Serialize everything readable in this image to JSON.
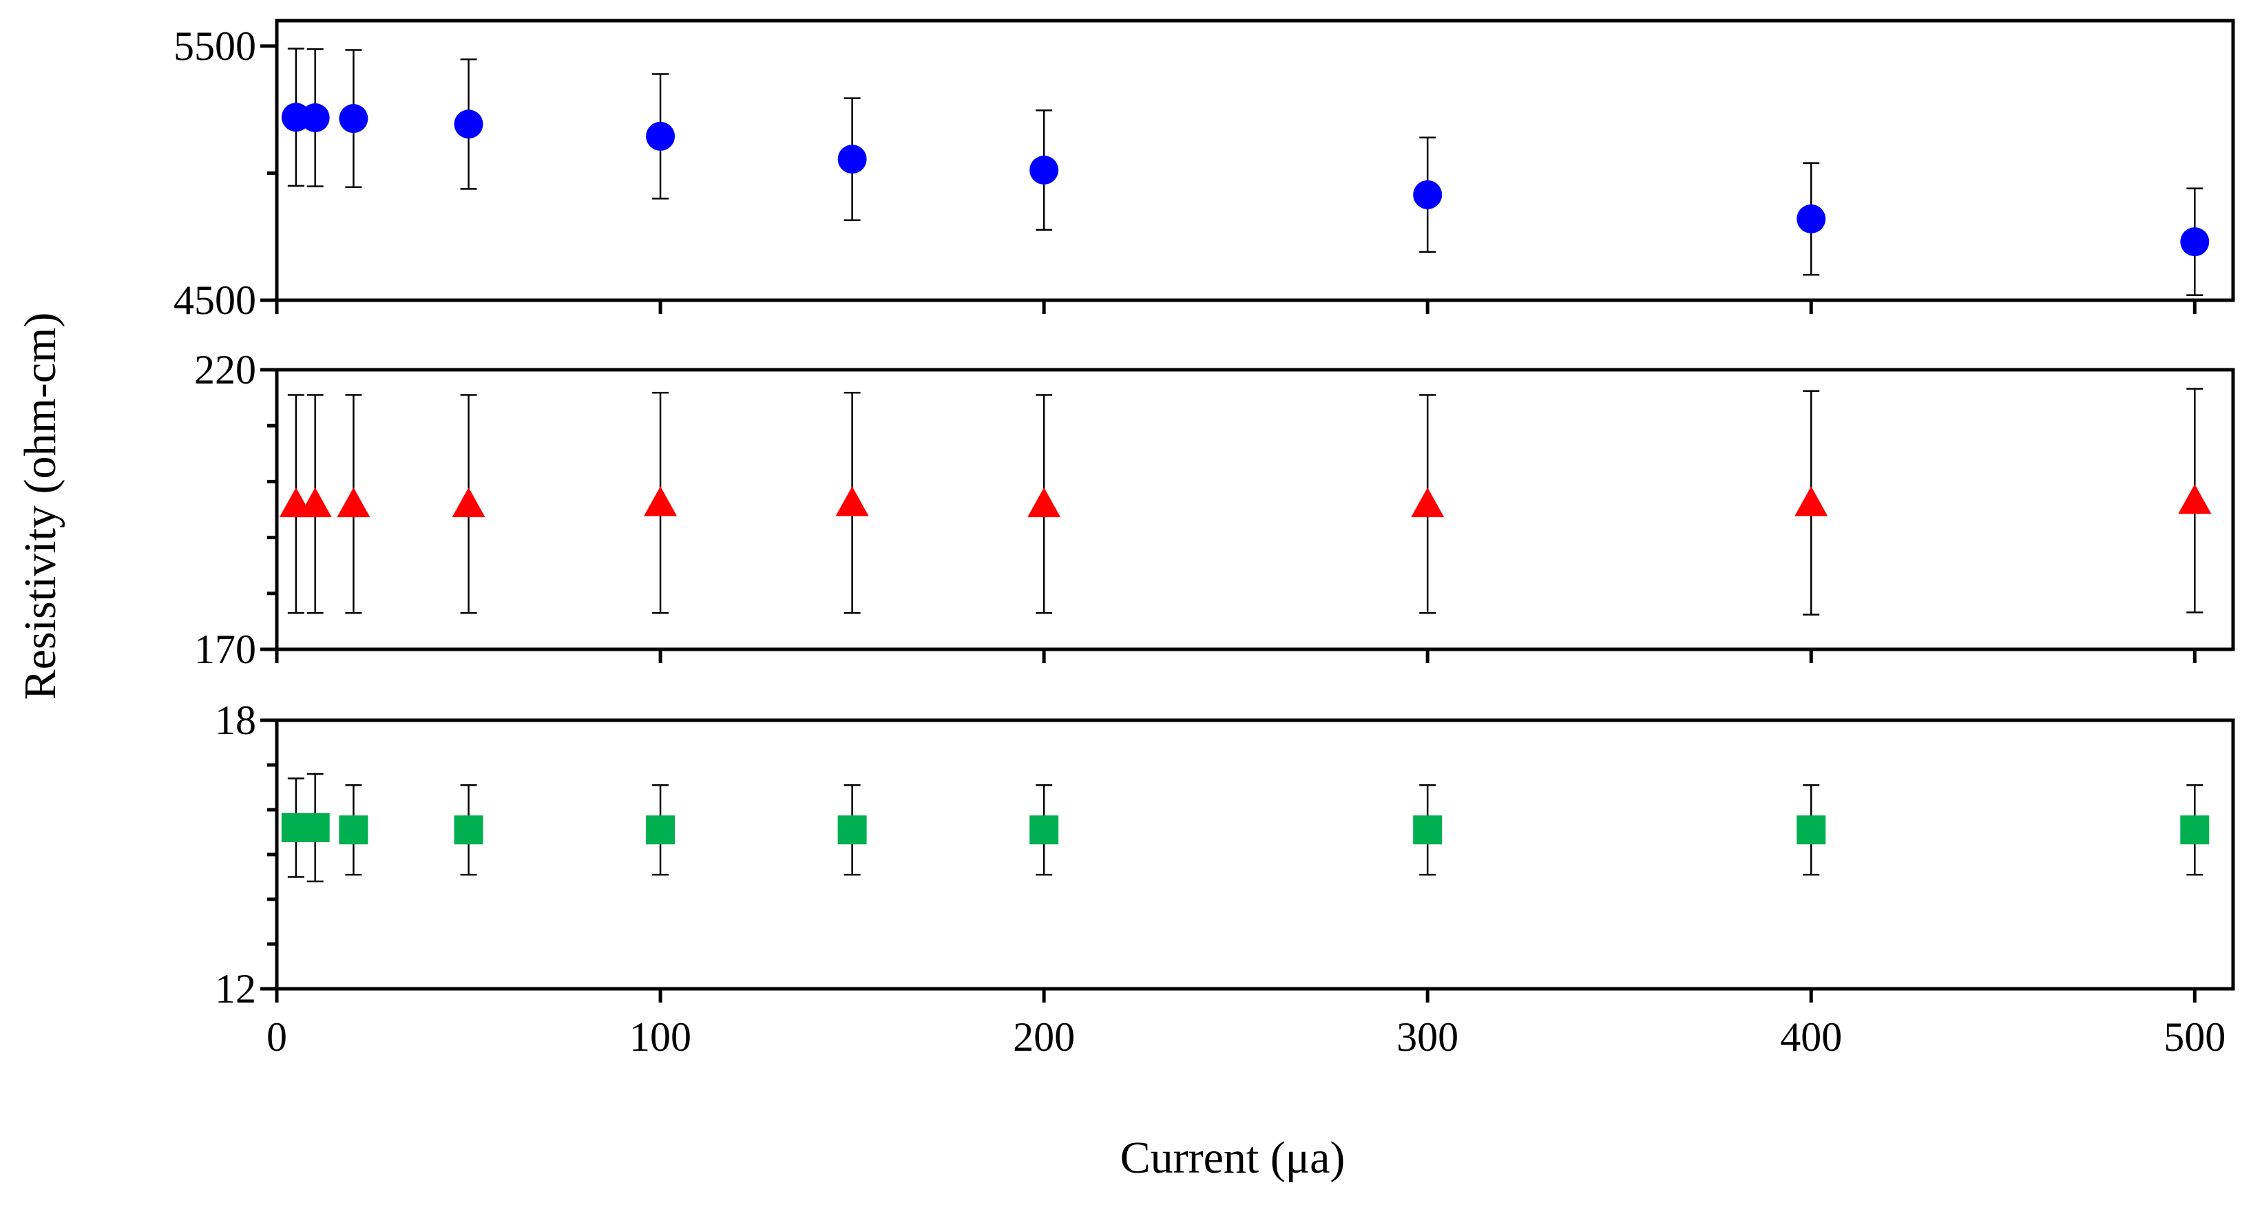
{
  "chart_data": {
    "type": "scatter",
    "xlabel": "Current (μa)",
    "ylabel": "Resistivity (ohm-cm)",
    "xlim": [
      0,
      510
    ],
    "x_ticks": [
      0,
      100,
      200,
      300,
      400,
      500
    ],
    "x_tick_labels": [
      "0",
      "100",
      "200",
      "300",
      "400",
      "500"
    ],
    "x": [
      5,
      10,
      20,
      50,
      100,
      150,
      200,
      300,
      400,
      500
    ],
    "panels": [
      {
        "name": "top",
        "marker": "circle",
        "color": "#0000ff",
        "ylim": [
          4500,
          5600
        ],
        "y_ticks": [
          4500,
          5500
        ],
        "y_tick_labels": [
          "4500",
          "5500"
        ],
        "y_minor_ticks": [
          5000
        ],
        "values": [
          5220,
          5218,
          5215,
          5193,
          5145,
          5055,
          5012,
          4915,
          4820,
          4730
        ],
        "err": [
          270,
          270,
          270,
          255,
          245,
          240,
          235,
          225,
          220,
          210
        ]
      },
      {
        "name": "middle",
        "marker": "triangle",
        "color": "#ff0000",
        "ylim": [
          170,
          220
        ],
        "y_ticks": [
          170,
          220
        ],
        "y_tick_labels": [
          "170",
          "220"
        ],
        "y_minor_ticks": [
          180,
          190,
          200,
          210
        ],
        "values": [
          196,
          196,
          196,
          196,
          196.2,
          196.2,
          196,
          196,
          196.2,
          196.6
        ],
        "err": [
          19.5,
          19.5,
          19.5,
          19.5,
          19.7,
          19.7,
          19.5,
          19.5,
          20.0,
          20.0
        ]
      },
      {
        "name": "bottom",
        "marker": "square",
        "color": "#00b050",
        "ylim": [
          12,
          18
        ],
        "y_ticks": [
          12,
          18
        ],
        "y_tick_labels": [
          "12",
          "18"
        ],
        "y_minor_ticks": [
          13,
          14,
          15,
          16,
          17
        ],
        "values": [
          15.6,
          15.6,
          15.55,
          15.55,
          15.55,
          15.55,
          15.55,
          15.55,
          15.55,
          15.55
        ],
        "err": [
          1.1,
          1.2,
          1.0,
          1.0,
          1.0,
          1.0,
          1.0,
          1.0,
          1.0,
          1.0
        ]
      }
    ]
  }
}
